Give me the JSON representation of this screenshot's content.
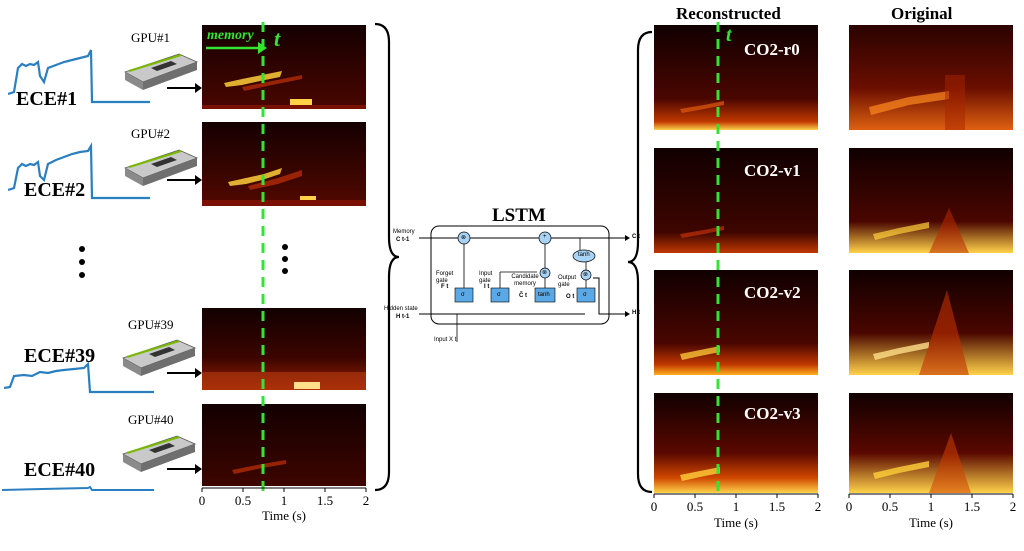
{
  "left_column": {
    "rows": [
      {
        "ece_label": "ECE#1",
        "gpu_label": "GPU#1"
      },
      {
        "ece_label": "ECE#2",
        "gpu_label": "GPU#2"
      },
      {
        "ece_label": "ECE#39",
        "gpu_label": "GPU#39"
      },
      {
        "ece_label": "ECE#40",
        "gpu_label": "GPU#40"
      }
    ],
    "ellipsis": "⋮",
    "memory_label": "memory",
    "t_label": "t",
    "time_axis_label": "Time (s)",
    "time_ticks": [
      "0",
      "0.5",
      "1",
      "1.5",
      "2"
    ]
  },
  "lstm": {
    "title": "LSTM",
    "memory_in": "Memory",
    "memory_in_sym": "C t-1",
    "hidden_in": "Hidden state",
    "hidden_in_sym": "H t-1",
    "input_label": "Input X t",
    "memory_out": "C t",
    "hidden_out": "H t",
    "forget_gate": "Forget gate",
    "forget_sym": "F t",
    "input_gate": "Input gate",
    "input_sym": "I t",
    "candidate": "Candidate memory",
    "candidate_sym": "C̃ t",
    "output_gate": "Output gate",
    "output_sym": "O t",
    "sigma": "σ",
    "tanh": "tanh",
    "times": "⊗",
    "plus": "+"
  },
  "reconstructed": {
    "title": "Reconstructed",
    "t_label": "t",
    "cases": [
      "CO2-r0",
      "CO2-v1",
      "CO2-v2",
      "CO2-v3"
    ],
    "time_axis_label": "Time (s)",
    "time_ticks": [
      "0",
      "0.5",
      "1",
      "1.5",
      "2"
    ]
  },
  "original": {
    "title": "Original",
    "time_axis_label": "Time (s)",
    "time_ticks": [
      "0",
      "0.5",
      "1",
      "1.5",
      "2"
    ]
  },
  "colors": {
    "ece_trace": "#2a7fc1",
    "dashed_line": "#33e433",
    "memory_arrow": "#33e433",
    "lstm_box": "#5aa9e6",
    "spec_bg": "#1a0000",
    "spec_hot": "#ffd24a"
  },
  "icons": [
    "gpu-card-icon",
    "right-arrow-icon",
    "curly-brace-icon"
  ]
}
